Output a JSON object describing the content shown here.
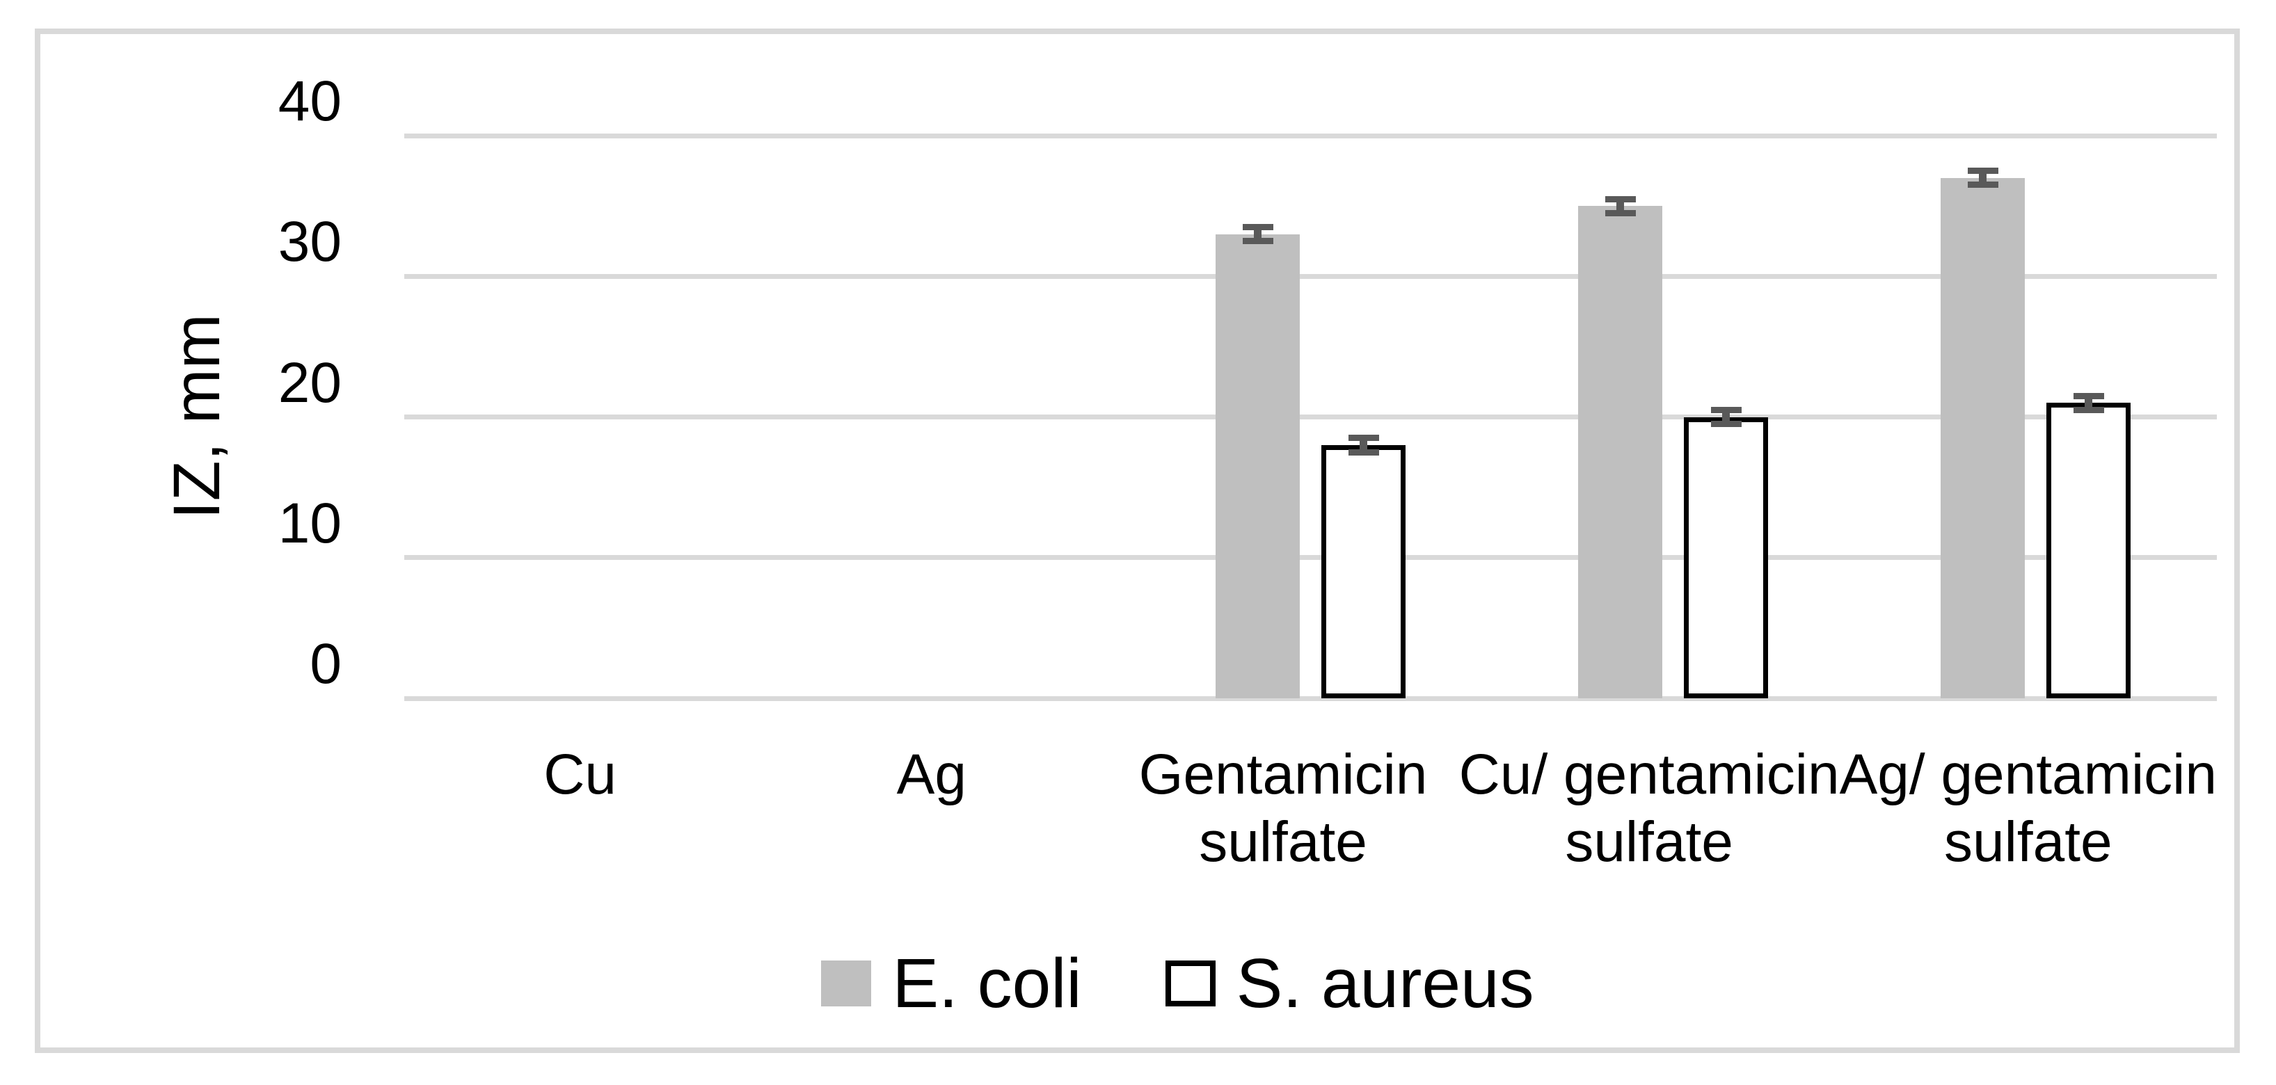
{
  "chart_data": {
    "type": "bar",
    "title": "",
    "ylabel": "IZ, mm",
    "xlabel": "",
    "categories": [
      "Cu",
      "Ag",
      "Gentamicin sulfate",
      "Cu/ gentamicin sulfate",
      "Ag/ gentamicin sulfate"
    ],
    "category_label_lines": [
      [
        "Cu"
      ],
      [
        "Ag"
      ],
      [
        "Gentamicin",
        "sulfate"
      ],
      [
        "Cu/ gentamicin",
        "sulfate"
      ],
      [
        "Ag/ gentamicin",
        "sulfate"
      ]
    ],
    "series": [
      {
        "name": "E. coli",
        "values": [
          0,
          0,
          33,
          35,
          37
        ],
        "errors": [
          0,
          0,
          0.5,
          0.5,
          0.5
        ],
        "fill": "#bfbfbf",
        "border_color": null
      },
      {
        "name": "S. aureus",
        "values": [
          0,
          0,
          18,
          20,
          21
        ],
        "errors": [
          0,
          0,
          0.5,
          0.5,
          0.5
        ],
        "fill": "#ffffff",
        "border_color": "#000000"
      }
    ],
    "y_ticks": [
      40,
      30,
      20,
      10,
      0
    ],
    "ylim": [
      0,
      40
    ],
    "grid": true,
    "legend_position": "bottom"
  },
  "colors": {
    "gridline": "#d9d9d9",
    "chart_border": "#d9d9d9",
    "error_bar": "#595959",
    "text": "#000000",
    "background": "#ffffff"
  }
}
